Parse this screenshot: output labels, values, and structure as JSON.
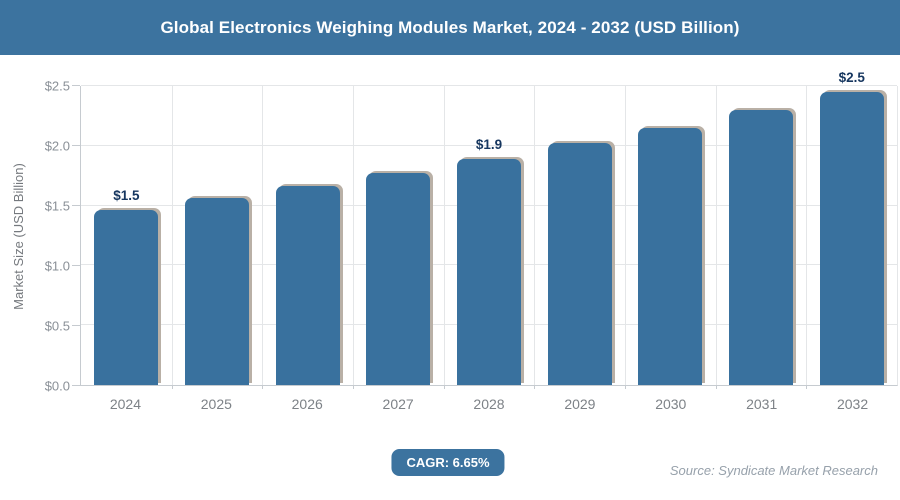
{
  "header": {
    "title": "Global Electronics Weighing Modules Market, 2024 - 2032 (USD Billion)"
  },
  "chart_data": {
    "type": "bar",
    "title": "Global Electronics Weighing Modules Market, 2024 - 2032 (USD Billion)",
    "categories": [
      "2024",
      "2025",
      "2026",
      "2027",
      "2028",
      "2029",
      "2030",
      "2031",
      "2032"
    ],
    "values": [
      1.46,
      1.56,
      1.66,
      1.77,
      1.89,
      2.02,
      2.15,
      2.3,
      2.45
    ],
    "bar_labels": [
      "$1.5",
      "",
      "",
      "",
      "$1.9",
      "",
      "",
      "",
      "$2.5"
    ],
    "xlabel": "",
    "ylabel": "Market Size (USD Billion)",
    "ylim": [
      0,
      2.5
    ],
    "yticks": [
      0,
      0.5,
      1.0,
      1.5,
      2.0,
      2.5
    ],
    "ytick_labels": [
      "$0.0",
      "$0.5",
      "$1.0",
      "$1.5",
      "$2.0",
      "$2.5"
    ],
    "grid": "on",
    "legend": "none",
    "cagr": "6.65%"
  },
  "footer": {
    "cagr_label": "CAGR: 6.65%",
    "source": "Source: Syndicate Market Research"
  },
  "colors": {
    "banner": "#3C739F",
    "bar": "#39719E",
    "bar_shadow": "#b9b0a6",
    "grid": "#e4e6e8",
    "axis": "#c6cbd0",
    "tick_text": "#8a9097",
    "xlabel_text": "#7d8287",
    "data_label": "#16365F",
    "axis_title_text": "#75797e",
    "source_text": "#97a1ab"
  }
}
